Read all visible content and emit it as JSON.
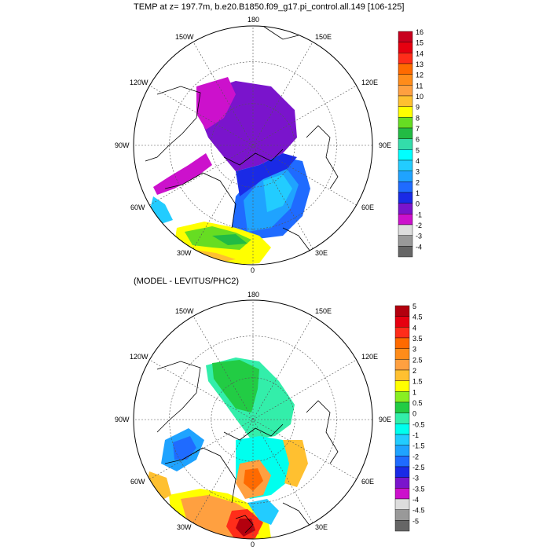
{
  "panel_top": {
    "title": "TEMP at z= 197.7m, b.e20.B1850.f09_g17.pi_control.all.149 [106-125]",
    "lon_labels": {
      "top": "180",
      "bottom": "0",
      "left": "90W",
      "right": "90E",
      "ul1": "150W",
      "ul2": "120W",
      "ur1": "150E",
      "ur2": "120E",
      "ll1": "60W",
      "ll2": "30W",
      "lr1": "60E",
      "lr2": "30E"
    },
    "colorbar": {
      "labels": [
        "16",
        "15",
        "14",
        "13",
        "12",
        "11",
        "10",
        "9",
        "8",
        "7",
        "6",
        "5",
        "4",
        "3",
        "2",
        "1",
        "0",
        "-1",
        "-2",
        "-3",
        "-4"
      ],
      "colors": [
        "#c8001e",
        "#e60010",
        "#ff2d1a",
        "#ff6a00",
        "#ff8c1a",
        "#ffa040",
        "#ffc030",
        "#ffff00",
        "#66dd22",
        "#22bb44",
        "#33ddaa",
        "#00ffff",
        "#22ccff",
        "#1fa3ff",
        "#1f6bff",
        "#1a2ae6",
        "#7a14cc",
        "#cc11cc",
        "#dddddd",
        "#999999",
        "#666666"
      ]
    }
  },
  "panel_bottom": {
    "title": "(MODEL - LEVITUS/PHC2)",
    "lon_labels": {
      "top": "180",
      "bottom": "0",
      "left": "90W",
      "right": "90E",
      "ul1": "150W",
      "ul2": "120W",
      "ur1": "150E",
      "ur2": "120E",
      "ll1": "60W",
      "ll2": "30W",
      "lr1": "60E",
      "lr2": "30E"
    },
    "colorbar": {
      "labels": [
        "5",
        "4.5",
        "4",
        "3.5",
        "3",
        "2.5",
        "2",
        "1.5",
        "1",
        "0.5",
        "0",
        "-0.5",
        "-1",
        "-1.5",
        "-2",
        "-2.5",
        "-3",
        "-3.5",
        "-4",
        "-4.5",
        "-5"
      ],
      "colors": [
        "#b3000e",
        "#e60010",
        "#ff2d1a",
        "#ff6a00",
        "#ff8c1a",
        "#ffa040",
        "#ffc030",
        "#ffff00",
        "#88ee22",
        "#22cc44",
        "#33eeaa",
        "#00ffee",
        "#22ccff",
        "#1fa3ff",
        "#1f6bff",
        "#1a2ae6",
        "#7a14cc",
        "#cc11cc",
        "#dddddd",
        "#999999",
        "#666666"
      ]
    }
  }
}
